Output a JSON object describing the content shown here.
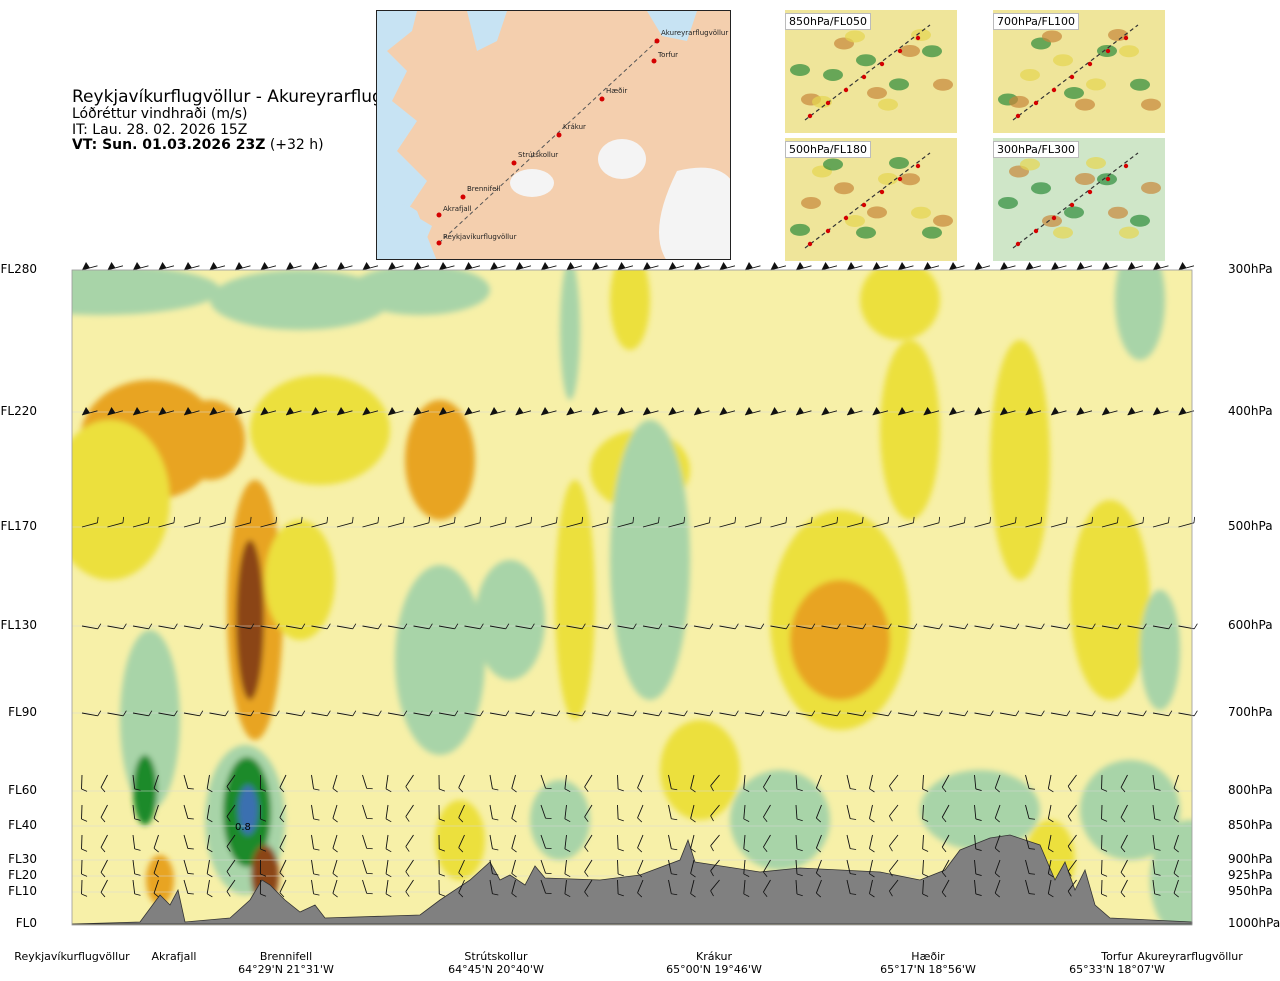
{
  "header": {
    "route": "Reykjavíkurflugvöllur - Akureyrarflugvöllur",
    "quantity": "Lóðréttur vindhraði (m/s)",
    "issue_time": "IT: Lau. 28. 02. 2026 15Z",
    "valid_time": "VT: Sun. 01.03.2026 23Z",
    "lead": "(+32 h)"
  },
  "map_labels": [
    "Akureyrarflugvöllur",
    "Torfur",
    "Hæðir",
    "Krákur",
    "Strútskollur",
    "Brennifell",
    "Akrafjall",
    "Reykjavíkurflugvöllur"
  ],
  "thumbnails": [
    {
      "label": "850hPa/FL050"
    },
    {
      "label": "700hPa/FL100"
    },
    {
      "label": "500hPa/FL180"
    },
    {
      "label": "300hPa/FL300"
    }
  ],
  "levels": [
    {
      "fl": "FL280",
      "hpa": "300hPa"
    },
    {
      "fl": "FL220",
      "hpa": "400hPa"
    },
    {
      "fl": "FL170",
      "hpa": "500hPa"
    },
    {
      "fl": "FL130",
      "hpa": "600hPa"
    },
    {
      "fl": "FL90",
      "hpa": "700hPa"
    },
    {
      "fl": "FL60",
      "hpa": "800hPa"
    },
    {
      "fl": "FL40",
      "hpa": "850hPa"
    },
    {
      "fl": "FL30",
      "hpa": "900hPa"
    },
    {
      "fl": "FL20",
      "hpa": "925hPa"
    },
    {
      "fl": "FL10",
      "hpa": "950hPa"
    },
    {
      "fl": "FL0",
      "hpa": "1000hPa"
    }
  ],
  "locations": [
    {
      "name": "Reykjavíkurflugvöllur",
      "coord": ""
    },
    {
      "name": "Akrafjall",
      "coord": ""
    },
    {
      "name": "Brennifell",
      "coord": "64°29'N 21°31'W"
    },
    {
      "name": "Strútskollur",
      "coord": "64°45'N 20°40'W"
    },
    {
      "name": "Krákur",
      "coord": "65°00'N 19°46'W"
    },
    {
      "name": "Hæðir",
      "coord": "65°17'N 18°56'W"
    },
    {
      "name": "Torfur",
      "coord": "65°33'N 18°07'W"
    },
    {
      "name": "Akureyrarflugvöllur",
      "coord": ""
    }
  ],
  "chart_data": {
    "type": "heatmap",
    "title": "Reykjavíkurflugvöllur - Akureyrarflugvöllur",
    "variable": "Lóðréttur vindhraði (m/s)",
    "y_axis_left": [
      "FL0",
      "FL10",
      "FL20",
      "FL30",
      "FL40",
      "FL60",
      "FL90",
      "FL130",
      "FL170",
      "FL220",
      "FL280"
    ],
    "y_axis_right": [
      "1000hPa",
      "950hPa",
      "925hPa",
      "900hPa",
      "850hPa",
      "800hPa",
      "700hPa",
      "600hPa",
      "500hPa",
      "400hPa",
      "300hPa"
    ],
    "x_axis_locations": [
      "Reykjavíkurflugvöllur",
      "Akrafjall",
      "Brennifell",
      "Strútskollur",
      "Krákur",
      "Hæðir",
      "Torfur",
      "Akureyrarflugvöllur"
    ],
    "colors": {
      "updraft_strong": "#3a6fb0",
      "updraft": "#1c8a2a",
      "updraft_weak": "#a8d4a8",
      "neutral": "#f7f0a8",
      "downdraft_weak": "#ece03c",
      "downdraft": "#e8a420",
      "downdraft_strong": "#8b4513",
      "terrain": "#808080"
    },
    "annotations": [
      {
        "text": "0.8",
        "location": "Brennifell",
        "level": "FL40"
      }
    ]
  }
}
